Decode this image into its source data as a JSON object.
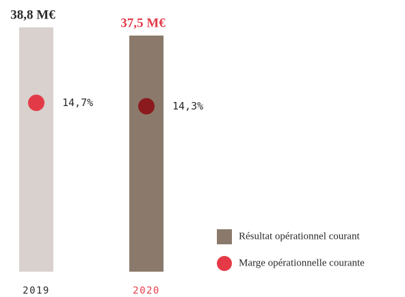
{
  "chart_data": {
    "type": "bar",
    "categories": [
      "2019",
      "2020"
    ],
    "category_colors": [
      "#2a2a2a",
      "#e23b47"
    ],
    "series": [
      {
        "name": "Résultat opérationnel courant",
        "color": "#8b7a6b",
        "point_colors": [
          "#d9d1cd",
          "#8b7a6b"
        ],
        "values": [
          38.8,
          37.5
        ],
        "value_labels": [
          "38,8 M€",
          "37,5 M€"
        ],
        "label_colors": [
          "#2a2a2a",
          "#e23b47"
        ]
      },
      {
        "name": "Marge opérationnelle courante",
        "type": "dot",
        "color": "#e63946",
        "point_colors": [
          "#e23b47",
          "#8b1a1f"
        ],
        "values": [
          14.7,
          14.3
        ],
        "value_labels": [
          "14,7%",
          "14,3%"
        ]
      }
    ]
  }
}
